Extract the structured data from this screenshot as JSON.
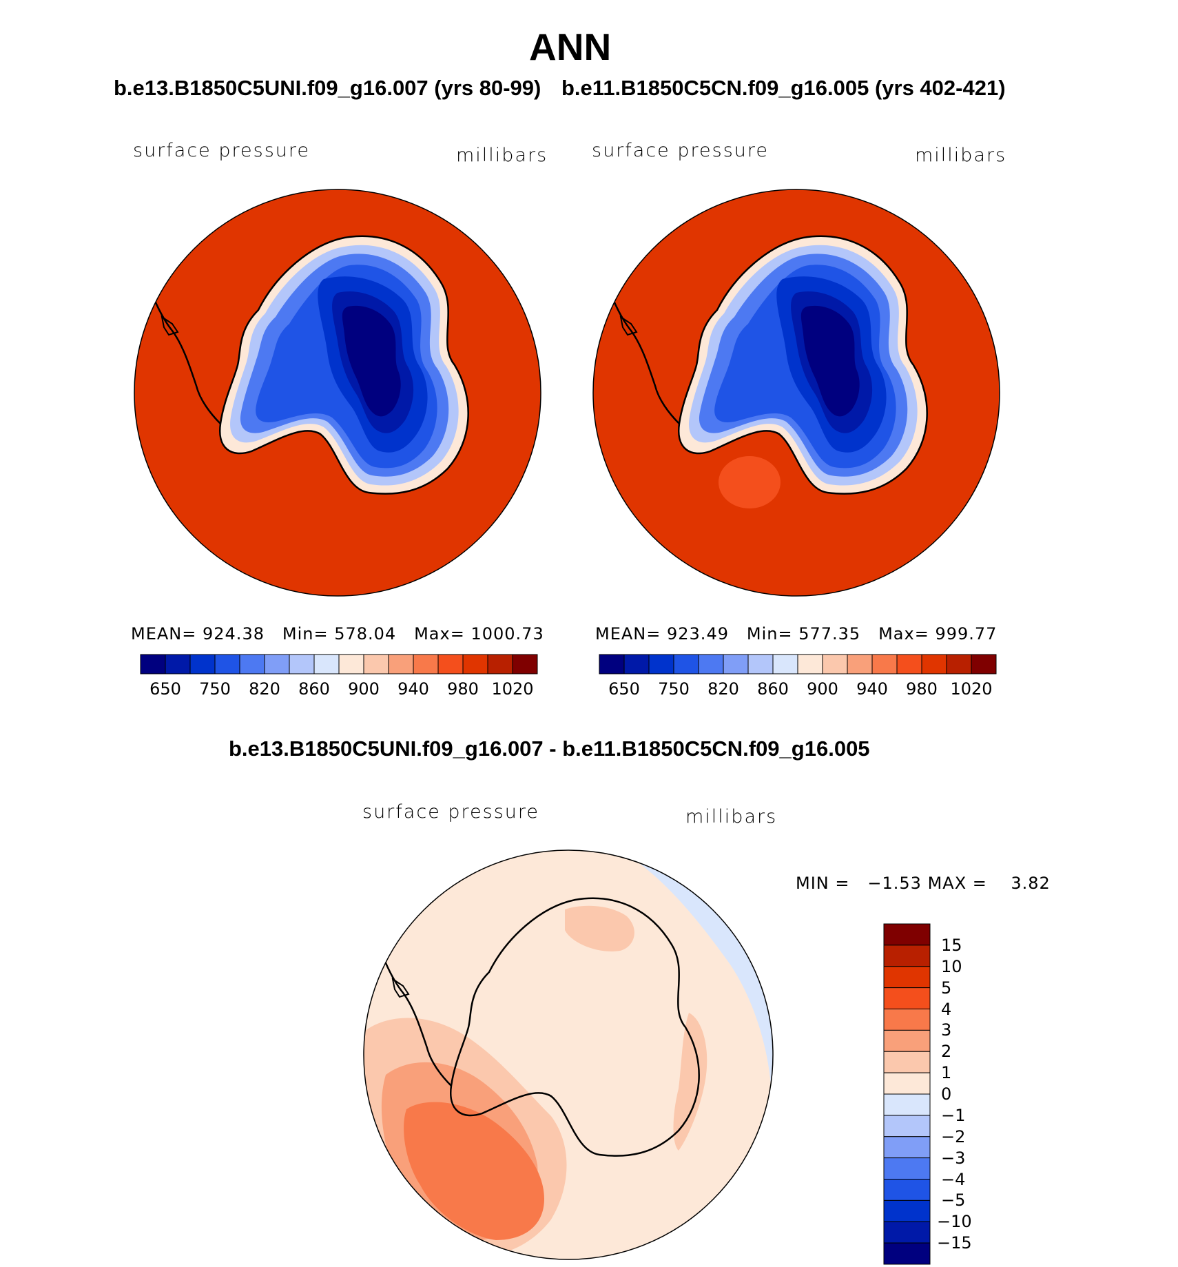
{
  "title": "ANN",
  "panels": [
    {
      "case": "b.e13.B1850C5UNI.f09_g16.007 (yrs 80-99)",
      "variable": "surface pressure",
      "units": "millibars",
      "stats": {
        "mean_label": "MEAN=",
        "mean": "924.38",
        "min_label": "Min=",
        "min": "578.04",
        "max_label": "Max=",
        "max": "1000.73"
      }
    },
    {
      "case": "b.e11.B1850C5CN.f09_g16.005 (yrs 402-421)",
      "variable": "surface pressure",
      "units": "millibars",
      "stats": {
        "mean_label": "MEAN=",
        "mean": "923.49",
        "min_label": "Min=",
        "min": "577.35",
        "max_label": "Max=",
        "max": "999.77"
      }
    }
  ],
  "colorbar": {
    "colors": [
      "#00007f",
      "#0019a8",
      "#0033cc",
      "#1f54e6",
      "#4d79f2",
      "#809ef7",
      "#b3c6fa",
      "#d9e6fc",
      "#fde8d8",
      "#fbc8ad",
      "#f9a07a",
      "#f8794a",
      "#f44f1c",
      "#e03500",
      "#b82000",
      "#7f0000"
    ],
    "tick_labels": [
      "650",
      "750",
      "820",
      "860",
      "900",
      "940",
      "980",
      "1020"
    ]
  },
  "diff_panel": {
    "title": "b.e13.B1850C5UNI.f09_g16.007 - b.e11.B1850C5CN.f09_g16.005",
    "variable": "surface pressure",
    "units": "millibars",
    "min_label": "MIN =",
    "min": "−1.53",
    "max_label": "MAX =",
    "max": "3.82"
  },
  "diff_colorbar": {
    "colors_top_to_bottom": [
      "#7f0000",
      "#b82000",
      "#e03500",
      "#f44f1c",
      "#f8794a",
      "#f9a07a",
      "#fbc8ad",
      "#fde8d8",
      "#d9e6fc",
      "#b3c6fa",
      "#809ef7",
      "#4d79f2",
      "#1f54e6",
      "#0033cc",
      "#0019a8",
      "#00007f"
    ],
    "tick_labels": [
      "15",
      "10",
      "5",
      "4",
      "3",
      "2",
      "1",
      "0",
      "−1",
      "−2",
      "−3",
      "−4",
      "−5",
      "−10",
      "−15"
    ]
  }
}
